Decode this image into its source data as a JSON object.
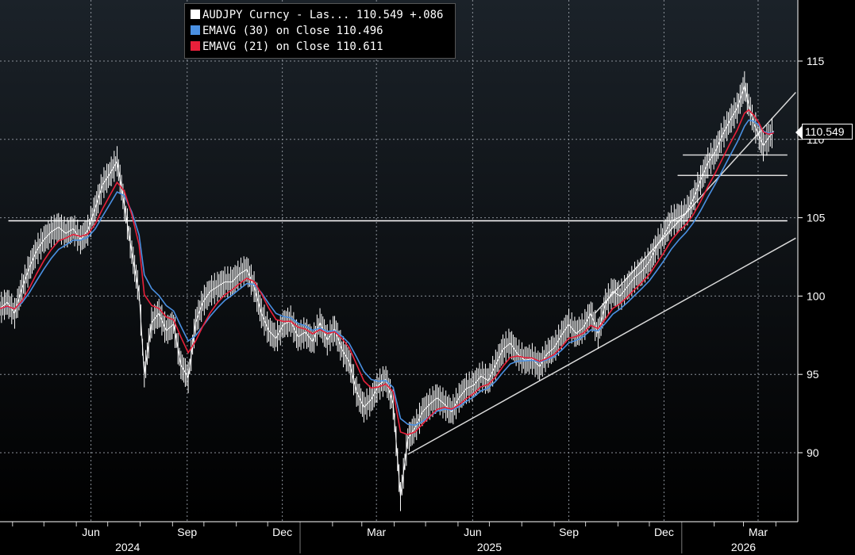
{
  "chart_data": {
    "type": "line",
    "title": "",
    "legend_placement": "top-left",
    "y_ticks": [
      "90",
      "95",
      "100",
      "105",
      "110",
      "115"
    ],
    "ylim": [
      86,
      119
    ],
    "x_month_labels": [
      "Jun",
      "Sep",
      "Dec",
      "Mar",
      "Jun",
      "Sep",
      "Dec",
      "Mar"
    ],
    "x_year_labels": [
      "2024",
      "2025",
      "2026"
    ],
    "grid": true,
    "last_value_badge": "110.549",
    "legend": [
      {
        "label": "AUDJPY Curncy - Las... 110.549  +.086",
        "color": "#ffffff"
      },
      {
        "label": "EMAVG (30)  on Close  110.496",
        "color": "#4a90e2"
      },
      {
        "label": "EMAVG (21)  on Close  110.611",
        "color": "#e8203a"
      }
    ],
    "series": [
      {
        "name": "AUDJPY Curncy",
        "color": "#ffffff",
        "points": [
          [
            "2024-03-20",
            99.2
          ],
          [
            "2024-03-27",
            99.6
          ],
          [
            "2024-04-03",
            98.9
          ],
          [
            "2024-04-10",
            100.5
          ],
          [
            "2024-04-17",
            101.8
          ],
          [
            "2024-04-24",
            102.9
          ],
          [
            "2024-05-01",
            103.6
          ],
          [
            "2024-05-08",
            104.1
          ],
          [
            "2024-05-15",
            104.4
          ],
          [
            "2024-05-22",
            104.0
          ],
          [
            "2024-05-29",
            104.3
          ],
          [
            "2024-06-05",
            103.6
          ],
          [
            "2024-06-12",
            104.2
          ],
          [
            "2024-06-19",
            105.6
          ],
          [
            "2024-06-26",
            107.1
          ],
          [
            "2024-07-03",
            107.8
          ],
          [
            "2024-07-10",
            108.6
          ],
          [
            "2024-07-17",
            105.8
          ],
          [
            "2024-07-24",
            102.8
          ],
          [
            "2024-07-31",
            100.2
          ],
          [
            "2024-08-05",
            95.0
          ],
          [
            "2024-08-12",
            98.3
          ],
          [
            "2024-08-19",
            98.9
          ],
          [
            "2024-08-26",
            97.8
          ],
          [
            "2024-09-02",
            98.2
          ],
          [
            "2024-09-09",
            95.6
          ],
          [
            "2024-09-16",
            94.8
          ],
          [
            "2024-09-23",
            98.3
          ],
          [
            "2024-09-30",
            99.6
          ],
          [
            "2024-10-07",
            100.3
          ],
          [
            "2024-10-14",
            100.6
          ],
          [
            "2024-10-21",
            100.9
          ],
          [
            "2024-10-28",
            100.9
          ],
          [
            "2024-11-04",
            101.4
          ],
          [
            "2024-11-11",
            101.7
          ],
          [
            "2024-11-18",
            100.6
          ],
          [
            "2024-11-25",
            98.9
          ],
          [
            "2024-12-02",
            97.8
          ],
          [
            "2024-12-09",
            97.3
          ],
          [
            "2024-12-16",
            98.2
          ],
          [
            "2024-12-23",
            98.4
          ],
          [
            "2024-12-30",
            97.4
          ],
          [
            "2025-01-06",
            97.7
          ],
          [
            "2025-01-13",
            97.1
          ],
          [
            "2025-01-20",
            98.3
          ],
          [
            "2025-01-27",
            97.2
          ],
          [
            "2025-02-03",
            97.9
          ],
          [
            "2025-02-10",
            96.6
          ],
          [
            "2025-02-17",
            95.8
          ],
          [
            "2025-02-24",
            93.9
          ],
          [
            "2025-03-03",
            92.9
          ],
          [
            "2025-03-10",
            93.4
          ],
          [
            "2025-03-17",
            94.3
          ],
          [
            "2025-03-24",
            94.7
          ],
          [
            "2025-03-31",
            93.1
          ],
          [
            "2025-04-07",
            87.2
          ],
          [
            "2025-04-14",
            90.9
          ],
          [
            "2025-04-21",
            91.6
          ],
          [
            "2025-04-28",
            92.6
          ],
          [
            "2025-05-05",
            93.1
          ],
          [
            "2025-05-12",
            93.5
          ],
          [
            "2025-05-19",
            93.1
          ],
          [
            "2025-05-26",
            92.6
          ],
          [
            "2025-06-02",
            93.5
          ],
          [
            "2025-06-09",
            94.1
          ],
          [
            "2025-06-16",
            94.3
          ],
          [
            "2025-06-23",
            94.9
          ],
          [
            "2025-06-30",
            94.6
          ],
          [
            "2025-07-07",
            95.6
          ],
          [
            "2025-07-14",
            96.6
          ],
          [
            "2025-07-21",
            97.0
          ],
          [
            "2025-07-28",
            96.3
          ],
          [
            "2025-08-04",
            95.9
          ],
          [
            "2025-08-11",
            96.0
          ],
          [
            "2025-08-18",
            95.5
          ],
          [
            "2025-08-25",
            96.3
          ],
          [
            "2025-09-01",
            96.7
          ],
          [
            "2025-09-08",
            97.5
          ],
          [
            "2025-09-15",
            98.2
          ],
          [
            "2025-09-22",
            97.6
          ],
          [
            "2025-09-29",
            98.0
          ],
          [
            "2025-10-06",
            98.9
          ],
          [
            "2025-10-13",
            97.6
          ],
          [
            "2025-10-20",
            99.5
          ],
          [
            "2025-10-27",
            100.3
          ],
          [
            "2025-11-03",
            100.0
          ],
          [
            "2025-11-10",
            100.6
          ],
          [
            "2025-11-17",
            101.2
          ],
          [
            "2025-11-24",
            101.6
          ],
          [
            "2025-12-01",
            102.2
          ],
          [
            "2025-12-08",
            103.2
          ],
          [
            "2025-12-15",
            103.9
          ],
          [
            "2025-12-22",
            104.8
          ],
          [
            "2025-12-29",
            105.0
          ],
          [
            "2026-01-05",
            105.3
          ],
          [
            "2026-01-12",
            106.2
          ],
          [
            "2026-01-19",
            107.4
          ],
          [
            "2026-01-26",
            108.5
          ],
          [
            "2026-02-02",
            109.2
          ],
          [
            "2026-02-09",
            110.3
          ],
          [
            "2026-02-16",
            111.2
          ],
          [
            "2026-02-23",
            112.0
          ],
          [
            "2026-03-02",
            113.4
          ],
          [
            "2026-03-06",
            112.2
          ],
          [
            "2026-03-11",
            111.0
          ],
          [
            "2026-03-16",
            110.2
          ],
          [
            "2026-03-20",
            109.6
          ],
          [
            "2026-03-25",
            110.1
          ],
          [
            "2026-03-30",
            110.549
          ]
        ]
      }
    ],
    "trendlines": [
      {
        "from": [
          "2025-04-14",
          89.9
        ],
        "to": [
          "2026-04-20",
          103.7
        ],
        "color": "#d9d9d9"
      },
      {
        "from": [
          "2025-10-10",
          98.9
        ],
        "to": [
          "2026-04-20",
          113.0
        ],
        "color": "#d9d9d9"
      },
      {
        "from": [
          "2024-03-28",
          104.8
        ],
        "to": [
          "2026-04-12",
          104.8
        ],
        "color": "#ffffff"
      },
      {
        "from": [
          "2026-01-02",
          109.0
        ],
        "to": [
          "2026-04-12",
          109.0
        ],
        "color": "#d9d9d9"
      },
      {
        "from": [
          "2025-12-28",
          107.7
        ],
        "to": [
          "2026-04-12",
          107.7
        ],
        "color": "#d9d9d9"
      }
    ]
  }
}
